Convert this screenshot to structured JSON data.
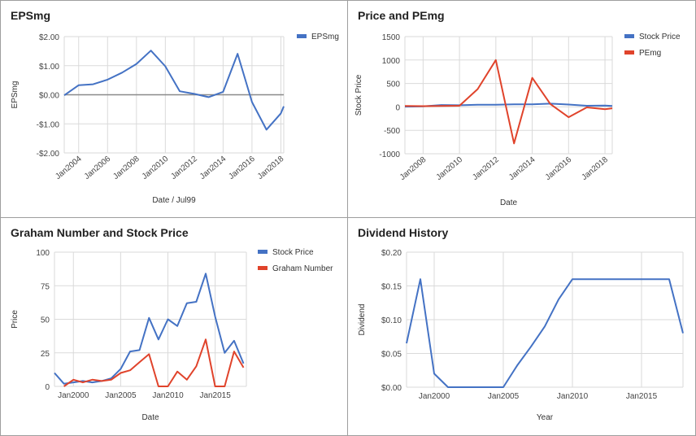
{
  "chart_data": [
    {
      "type": "line",
      "title": "EPSmg",
      "xlabel": "Date / Jul99",
      "ylabel": "EPSmg",
      "ylim": [
        -2,
        2
      ],
      "y_ticks": [
        "$2.00",
        "$1.00",
        "$0.00",
        "-$1.00",
        "-$2.00"
      ],
      "x_ticks": [
        "Jan2004",
        "Jan2006",
        "Jan2008",
        "Jan2010",
        "Jan2012",
        "Jan2014",
        "Jan2016",
        "Jan2018"
      ],
      "baseline": 0,
      "legend_position": "top-right",
      "series": [
        {
          "name": "EPSmg",
          "color": "#4472c4",
          "x": [
            2003,
            2004,
            2005,
            2006,
            2007,
            2008,
            2009,
            2010,
            2011,
            2012,
            2013,
            2014,
            2015,
            2016,
            2017,
            2018,
            2018.2
          ],
          "values": [
            -0.02,
            0.33,
            0.36,
            0.52,
            0.76,
            1.06,
            1.52,
            0.98,
            0.12,
            0.03,
            -0.08,
            0.1,
            1.41,
            -0.25,
            -1.2,
            -0.64,
            -0.4
          ]
        }
      ]
    },
    {
      "type": "line",
      "title": "Price and PEmg",
      "xlabel": "Date",
      "ylabel": "Stock Price",
      "ylim": [
        -1000,
        1500
      ],
      "y_ticks": [
        "1500",
        "1000",
        "500",
        "0",
        "-500",
        "-1000"
      ],
      "x_ticks": [
        "Jan2008",
        "Jan2010",
        "Jan2012",
        "Jan2014",
        "Jan2016",
        "Jan2018"
      ],
      "legend_position": "top-right",
      "series": [
        {
          "name": "Stock Price",
          "color": "#4472c4",
          "x": [
            2007,
            2008,
            2009,
            2010,
            2011,
            2012,
            2013,
            2014,
            2015,
            2016,
            2017,
            2018,
            2018.4
          ],
          "values": [
            5,
            10,
            40,
            35,
            45,
            45,
            55,
            55,
            70,
            50,
            25,
            30,
            20
          ]
        },
        {
          "name": "PEmg",
          "color": "#e0432b",
          "x": [
            2007,
            2008,
            2009,
            2010,
            2011,
            2012,
            2013,
            2014,
            2015,
            2016,
            2017,
            2018,
            2018.4
          ],
          "values": [
            20,
            15,
            20,
            25,
            380,
            1000,
            -780,
            620,
            60,
            -220,
            -10,
            -50,
            -30
          ]
        }
      ]
    },
    {
      "type": "line",
      "title": "Graham Number and Stock Price",
      "xlabel": "Date",
      "ylabel": "Price",
      "ylim": [
        0,
        100
      ],
      "y_ticks": [
        "100",
        "75",
        "50",
        "25",
        "0"
      ],
      "x_ticks": [
        "Jan2000",
        "Jan2005",
        "Jan2010",
        "Jan2015"
      ],
      "legend_position": "top-right",
      "series": [
        {
          "name": "Stock Price",
          "color": "#4472c4",
          "x": [
            1998,
            1999,
            2000,
            2001,
            2002,
            2003,
            2004,
            2005,
            2006,
            2007,
            2008,
            2009,
            2010,
            2011,
            2012,
            2013,
            2014,
            2015,
            2016,
            2017,
            2018
          ],
          "values": [
            10,
            2,
            3,
            4,
            3,
            4,
            6,
            13,
            26,
            27,
            51,
            35,
            50,
            45,
            62,
            63,
            84,
            52,
            25,
            34,
            17
          ]
        },
        {
          "name": "Graham Number",
          "color": "#e0432b",
          "x": [
            1999,
            2000,
            2001,
            2002,
            2003,
            2004,
            2005,
            2006,
            2007,
            2008,
            2009,
            2010,
            2011,
            2012,
            2013,
            2014,
            2015,
            2016,
            2017,
            2018
          ],
          "values": [
            0,
            5,
            3,
            5,
            4,
            5,
            10,
            12,
            18,
            24,
            0,
            0,
            11,
            5,
            15,
            35,
            0,
            0,
            26,
            14
          ]
        }
      ]
    },
    {
      "type": "line",
      "title": "Dividend History",
      "xlabel": "Year",
      "ylabel": "Dividend",
      "ylim": [
        0,
        0.2
      ],
      "y_ticks": [
        "$0.20",
        "$0.15",
        "$0.10",
        "$0.05",
        "$0.00"
      ],
      "x_ticks": [
        "Jan2000",
        "Jan2005",
        "Jan2010",
        "Jan2015"
      ],
      "series": [
        {
          "name": "Dividend",
          "color": "#4472c4",
          "x": [
            1998,
            1999,
            2000,
            2001,
            2002,
            2003,
            2004,
            2005,
            2006,
            2007,
            2008,
            2009,
            2010,
            2011,
            2012,
            2013,
            2014,
            2015,
            2016,
            2017,
            2018
          ],
          "values": [
            0.065,
            0.16,
            0.02,
            0,
            0,
            0,
            0,
            0,
            0.032,
            0.06,
            0.09,
            0.13,
            0.16,
            0.16,
            0.16,
            0.16,
            0.16,
            0.16,
            0.16,
            0.16,
            0.08
          ]
        }
      ]
    }
  ]
}
